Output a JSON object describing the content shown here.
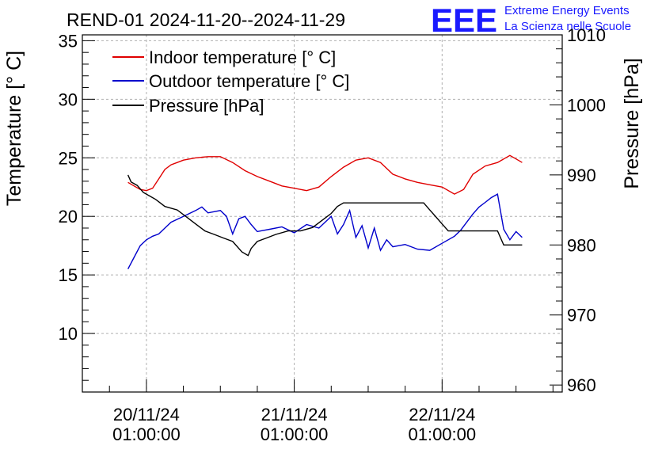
{
  "title": "REND-01 2024-11-20--2024-11-29",
  "logo": {
    "letters": "EEE",
    "line1": "Extreme Energy Events",
    "line2": "La Scienza nelle Scuole",
    "color": "#1a1aff"
  },
  "colors": {
    "indoor": "#e00000",
    "outdoor": "#0000cc",
    "pressure": "#000000",
    "grid": "#b0b0b0"
  },
  "chart_data": {
    "type": "line",
    "title": "REND-01 2024-11-20--2024-11-29",
    "xlabel": "",
    "ylabel": "Temperature [° C]",
    "y2label": "Pressure [hPa]",
    "ylim": [
      5,
      35.5
    ],
    "y2lim": [
      959,
      1010
    ],
    "xlim_hours": [
      -10.4,
      67.5
    ],
    "yticks": [
      10,
      15,
      20,
      25,
      30,
      35
    ],
    "y2ticks": [
      960,
      970,
      980,
      990,
      1000,
      1010
    ],
    "xticks": [
      {
        "hour": 0,
        "line1": "20/11/24",
        "line2": "01:00:00"
      },
      {
        "hour": 24,
        "line1": "21/11/24",
        "line2": "01:00:00"
      },
      {
        "hour": 48,
        "line1": "22/11/24",
        "line2": "01:00:00"
      }
    ],
    "grid": true,
    "legend_position": "top-left",
    "series": [
      {
        "name": "Indoor temperature [° C]",
        "axis": "left",
        "x": [
          -3,
          -2,
          -1,
          0,
          1,
          2,
          3,
          4,
          5,
          6,
          8,
          10,
          12,
          14,
          16,
          18,
          20,
          22,
          24,
          26,
          28,
          30,
          32,
          34,
          36,
          38,
          40,
          42,
          44,
          46,
          48,
          50,
          51.5,
          53,
          55,
          57,
          59,
          60,
          61
        ],
        "y": [
          22.9,
          22.6,
          22.3,
          22.2,
          22.4,
          23.2,
          24.0,
          24.4,
          24.6,
          24.8,
          25.0,
          25.1,
          25.1,
          24.6,
          23.9,
          23.4,
          23.0,
          22.6,
          22.4,
          22.2,
          22.5,
          23.4,
          24.2,
          24.8,
          25.0,
          24.6,
          23.6,
          23.2,
          22.9,
          22.7,
          22.5,
          21.9,
          22.3,
          23.6,
          24.3,
          24.6,
          25.2,
          24.9,
          24.6
        ]
      },
      {
        "name": "Outdoor temperature [° C]",
        "axis": "left",
        "x": [
          -3,
          -2,
          -1,
          0,
          1,
          2,
          3,
          4,
          6,
          8,
          9,
          10,
          12,
          13,
          14,
          15,
          16,
          17,
          18,
          20,
          22,
          24,
          26,
          28,
          30,
          31,
          32,
          33,
          34,
          35,
          36,
          37,
          38,
          39,
          40,
          42,
          44,
          46,
          48,
          50,
          51,
          52,
          53,
          54,
          55,
          56,
          57,
          58,
          59,
          60,
          61
        ],
        "y": [
          15.5,
          16.5,
          17.5,
          18.0,
          18.3,
          18.5,
          19.0,
          19.5,
          20.0,
          20.5,
          20.8,
          20.3,
          20.5,
          20.0,
          18.5,
          19.8,
          20.0,
          19.3,
          18.7,
          18.9,
          19.1,
          18.6,
          19.3,
          19.0,
          20.0,
          18.5,
          19.3,
          20.5,
          18.2,
          19.2,
          17.3,
          19.0,
          17.1,
          18.0,
          17.4,
          17.6,
          17.2,
          17.1,
          17.7,
          18.3,
          18.8,
          19.5,
          20.2,
          20.8,
          21.2,
          21.6,
          21.9,
          18.9,
          18.0,
          18.7,
          18.2
        ]
      },
      {
        "name": "Pressure [hPa]",
        "axis": "right",
        "x": [
          -3,
          -2.5,
          -1.5,
          -0.5,
          0.5,
          1.5,
          3,
          5,
          6.5,
          8,
          9.5,
          11,
          12.5,
          14,
          15.5,
          16.5,
          17,
          18,
          19.5,
          21,
          23,
          25,
          27,
          28.5,
          30,
          31,
          32,
          33.5,
          35,
          37,
          39,
          41,
          43,
          45,
          46,
          47,
          48,
          49,
          51,
          53,
          55,
          57,
          58,
          58.5,
          59.5,
          60.5,
          61
        ],
        "y": [
          990.0,
          989.0,
          988.5,
          987.5,
          987.0,
          986.5,
          985.5,
          985.0,
          984.0,
          983.0,
          982.0,
          981.5,
          981.0,
          980.5,
          979.0,
          978.5,
          979.5,
          980.5,
          981.0,
          981.5,
          982.0,
          982.0,
          982.5,
          983.5,
          984.5,
          985.5,
          986.0,
          986.0,
          986.0,
          986.0,
          986.0,
          986.0,
          986.0,
          986.0,
          985.0,
          984.0,
          983.0,
          982.0,
          982.0,
          982.0,
          982.0,
          982.0,
          980.0,
          980.0,
          980.0,
          980.0,
          980.0
        ]
      }
    ]
  }
}
